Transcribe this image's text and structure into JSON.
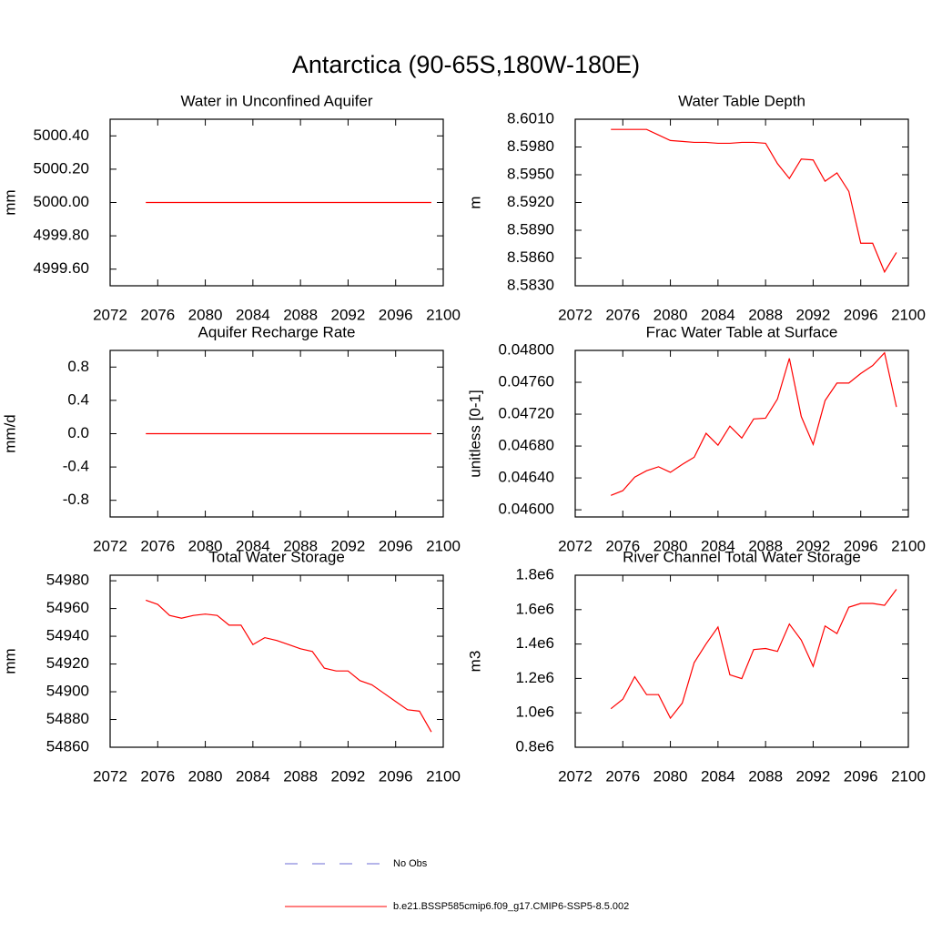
{
  "title": "Antarctica (90-65S,180W-180E)",
  "legend": [
    {
      "name": "No Obs",
      "color": "#6b6bd6",
      "dash": true
    },
    {
      "name": "b.e21.BSSP585cmip6.f09_g17.CMIP6-SSP5-8.5.002",
      "color": "#ff0000",
      "dash": false
    }
  ],
  "chart_data": [
    {
      "type": "line",
      "title": "Water in Unconfined Aquifer",
      "ylabel": "mm",
      "x": [
        2075,
        2076,
        2077,
        2078,
        2079,
        2080,
        2081,
        2082,
        2083,
        2084,
        2085,
        2086,
        2087,
        2088,
        2089,
        2090,
        2091,
        2092,
        2093,
        2094,
        2095,
        2096,
        2097,
        2098,
        2099
      ],
      "series": [
        {
          "color": "#ff0000",
          "values": [
            5000,
            5000,
            5000,
            5000,
            5000,
            5000,
            5000,
            5000,
            5000,
            5000,
            5000,
            5000,
            5000,
            5000,
            5000,
            5000,
            5000,
            5000,
            5000,
            5000,
            5000,
            5000,
            5000,
            5000,
            5000
          ]
        }
      ],
      "xlim": [
        2072,
        2100
      ],
      "xticks": [
        2072,
        2076,
        2080,
        2084,
        2088,
        2092,
        2096,
        2100
      ],
      "ylim": [
        4999.5,
        5000.5
      ],
      "yticks": [
        {
          "value": 4999.6,
          "label": "4999.60"
        },
        {
          "value": 4999.8,
          "label": "4999.80"
        },
        {
          "value": 5000,
          "label": "5000.00"
        },
        {
          "value": 5000.2,
          "label": "5000.20"
        },
        {
          "value": 5000.4,
          "label": "5000.40"
        }
      ]
    },
    {
      "type": "line",
      "title": "Water Table Depth",
      "ylabel": "m",
      "x": [
        2075,
        2076,
        2077,
        2078,
        2079,
        2080,
        2081,
        2082,
        2083,
        2084,
        2085,
        2086,
        2087,
        2088,
        2089,
        2090,
        2091,
        2092,
        2093,
        2094,
        2095,
        2096,
        2097,
        2098,
        2099
      ],
      "series": [
        {
          "color": "#ff0000",
          "values": [
            8.5999,
            8.5999,
            8.5999,
            8.5999,
            8.5993,
            8.5987,
            8.5986,
            8.5985,
            8.5985,
            8.5984,
            8.5984,
            8.5985,
            8.5985,
            8.5984,
            8.5962,
            8.5946,
            8.5967,
            8.5966,
            8.5943,
            8.5952,
            8.5932,
            8.5876,
            8.5876,
            8.5845,
            8.5866
          ]
        }
      ],
      "xlim": [
        2072,
        2100
      ],
      "xticks": [
        2072,
        2076,
        2080,
        2084,
        2088,
        2092,
        2096,
        2100
      ],
      "ylim": [
        8.583,
        8.601
      ],
      "yticks": [
        {
          "value": 8.583,
          "label": "8.5830"
        },
        {
          "value": 8.586,
          "label": "8.5860"
        },
        {
          "value": 8.589,
          "label": "8.5890"
        },
        {
          "value": 8.592,
          "label": "8.5920"
        },
        {
          "value": 8.595,
          "label": "8.5950"
        },
        {
          "value": 8.598,
          "label": "8.5980"
        },
        {
          "value": 8.601,
          "label": "8.6010"
        }
      ]
    },
    {
      "type": "line",
      "title": "Aquifer Recharge Rate",
      "ylabel": "mm/d",
      "x": [
        2075,
        2076,
        2077,
        2078,
        2079,
        2080,
        2081,
        2082,
        2083,
        2084,
        2085,
        2086,
        2087,
        2088,
        2089,
        2090,
        2091,
        2092,
        2093,
        2094,
        2095,
        2096,
        2097,
        2098,
        2099
      ],
      "series": [
        {
          "color": "#ff0000",
          "values": [
            0,
            0,
            0,
            0,
            0,
            0,
            0,
            0,
            0,
            0,
            0,
            0,
            0,
            0,
            0,
            0,
            0,
            0,
            0,
            0,
            0,
            0,
            0,
            0,
            0
          ]
        }
      ],
      "xlim": [
        2072,
        2100
      ],
      "xticks": [
        2072,
        2076,
        2080,
        2084,
        2088,
        2092,
        2096,
        2100
      ],
      "ylim": [
        -1,
        1
      ],
      "yticks": [
        -0.8,
        -0.4,
        {
          "value": 0,
          "label": "0.0"
        },
        0.4,
        0.8
      ]
    },
    {
      "type": "line",
      "title": "Frac Water Table at Surface",
      "ylabel": "unitless [0-1]",
      "x": [
        2075,
        2076,
        2077,
        2078,
        2079,
        2080,
        2081,
        2082,
        2083,
        2084,
        2085,
        2086,
        2087,
        2088,
        2089,
        2090,
        2091,
        2092,
        2093,
        2094,
        2095,
        2096,
        2097,
        2098,
        2099
      ],
      "series": [
        {
          "color": "#ff0000",
          "values": [
            0.04618,
            0.04624,
            0.04641,
            0.04649,
            0.04654,
            0.04647,
            0.04657,
            0.04666,
            0.04696,
            0.04681,
            0.04705,
            0.0469,
            0.04714,
            0.04715,
            0.04739,
            0.0479,
            0.04717,
            0.04682,
            0.04737,
            0.04759,
            0.04759,
            0.04771,
            0.04781,
            0.04797,
            0.04729
          ]
        }
      ],
      "xlim": [
        2072,
        2100
      ],
      "xticks": [
        2072,
        2076,
        2080,
        2084,
        2088,
        2092,
        2096,
        2100
      ],
      "ylim": [
        0.04591,
        0.048
      ],
      "yticks": [
        {
          "value": 0.046,
          "label": "0.04600"
        },
        {
          "value": 0.0464,
          "label": "0.04640"
        },
        {
          "value": 0.0468,
          "label": "0.04680"
        },
        {
          "value": 0.0472,
          "label": "0.04720"
        },
        {
          "value": 0.0476,
          "label": "0.04760"
        },
        {
          "value": 0.048,
          "label": "0.04800"
        }
      ]
    },
    {
      "type": "line",
      "title": "Total Water Storage",
      "ylabel": "mm",
      "x": [
        2075,
        2076,
        2077,
        2078,
        2079,
        2080,
        2081,
        2082,
        2083,
        2084,
        2085,
        2086,
        2087,
        2088,
        2089,
        2090,
        2091,
        2092,
        2093,
        2094,
        2095,
        2096,
        2097,
        2098,
        2099
      ],
      "series": [
        {
          "color": "#ff0000",
          "values": [
            54966,
            54963,
            54955,
            54953,
            54955,
            54956,
            54955,
            54948,
            54948,
            54934,
            54939,
            54937,
            54934,
            54931,
            54929,
            54917,
            54915,
            54915,
            54908,
            54905,
            54899,
            54893,
            54887,
            54886,
            54871
          ]
        }
      ],
      "xlim": [
        2072,
        2100
      ],
      "xticks": [
        2072,
        2076,
        2080,
        2084,
        2088,
        2092,
        2096,
        2100
      ],
      "ylim": [
        54860,
        54984
      ],
      "yticks": [
        54860,
        54880,
        54900,
        54920,
        54940,
        54960,
        54980
      ]
    },
    {
      "type": "line",
      "title": "River Channel Total Water Storage",
      "ylabel": "m3",
      "x": [
        2075,
        2076,
        2077,
        2078,
        2079,
        2080,
        2081,
        2082,
        2083,
        2084,
        2085,
        2086,
        2087,
        2088,
        2089,
        2090,
        2091,
        2092,
        2093,
        2094,
        2095,
        2096,
        2097,
        2098,
        2099
      ],
      "series": [
        {
          "color": "#ff0000",
          "values": [
            1024000,
            1079000,
            1210000,
            1106000,
            1106000,
            969000,
            1057000,
            1292000,
            1401000,
            1499000,
            1221000,
            1199000,
            1368000,
            1374000,
            1357000,
            1516000,
            1423000,
            1270000,
            1505000,
            1461000,
            1614000,
            1636000,
            1636000,
            1625000,
            1718000
          ]
        }
      ],
      "xlim": [
        2072,
        2100
      ],
      "xticks": [
        2072,
        2076,
        2080,
        2084,
        2088,
        2092,
        2096,
        2100
      ],
      "ylim": [
        800000,
        1800000
      ],
      "yticks": [
        {
          "value": 800000,
          "label": "0.8e6"
        },
        {
          "value": 1000000,
          "label": "1.0e6"
        },
        {
          "value": 1200000,
          "label": "1.2e6"
        },
        {
          "value": 1400000,
          "label": "1.4e6"
        },
        {
          "value": 1600000,
          "label": "1.6e6"
        },
        {
          "value": 1800000,
          "label": "1.8e6"
        }
      ]
    }
  ]
}
